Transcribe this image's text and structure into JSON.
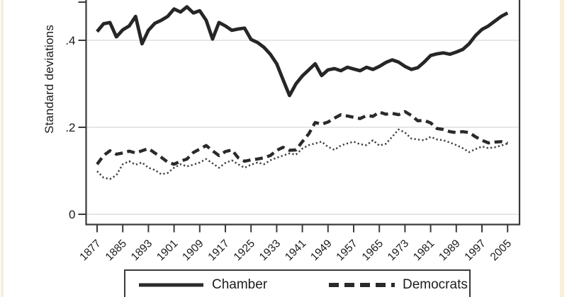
{
  "figure": {
    "background": "#ffffff",
    "edge_stripe_color": "#f7efda",
    "axis_color": "#3a3a3a",
    "grid_color": "#dddddd",
    "text_color": "#1a1a1a"
  },
  "legend": {
    "chamber_label": "Chamber",
    "democrats_label": "Democrats"
  },
  "chart_data": {
    "type": "line",
    "title": "",
    "xlabel": "",
    "ylabel": "Standard deviations",
    "x_range": {
      "start": 1877,
      "step": 2,
      "end": 2005
    },
    "xlim": [
      1877,
      2005
    ],
    "ylim_visible": [
      0,
      0.49
    ],
    "grid": "horizontal",
    "yticks": [
      {
        "value": 0,
        "label": "0"
      },
      {
        "value": 0.2,
        "label": ".2"
      },
      {
        "value": 0.4,
        "label": ".4"
      }
    ],
    "xticks": [
      "1877",
      "1885",
      "1893",
      "1901",
      "1909",
      "1917",
      "1925",
      "1933",
      "1941",
      "1949",
      "1957",
      "1965",
      "1973",
      "1981",
      "1989",
      "1997",
      "2005"
    ],
    "legend_position": "bottom",
    "legend_visible_entries": [
      "Chamber",
      "Democrats"
    ],
    "series": [
      {
        "id": "chamber",
        "name": "Chamber",
        "line_style": "solid",
        "color": "#262626",
        "stroke_width": 4.8,
        "dash": "",
        "in_visible_legend": true,
        "values": [
          0.42,
          0.438,
          0.441,
          0.408,
          0.424,
          0.433,
          0.455,
          0.392,
          0.423,
          0.439,
          0.446,
          0.455,
          0.472,
          0.465,
          0.477,
          0.463,
          0.468,
          0.446,
          0.403,
          0.441,
          0.433,
          0.423,
          0.426,
          0.428,
          0.402,
          0.395,
          0.384,
          0.368,
          0.346,
          0.309,
          0.273,
          0.3,
          0.318,
          0.332,
          0.346,
          0.319,
          0.332,
          0.335,
          0.33,
          0.338,
          0.334,
          0.33,
          0.338,
          0.333,
          0.34,
          0.349,
          0.355,
          0.35,
          0.34,
          0.333,
          0.337,
          0.35,
          0.365,
          0.369,
          0.371,
          0.368,
          0.373,
          0.379,
          0.392,
          0.411,
          0.425,
          0.433,
          0.444,
          0.455,
          0.463
        ]
      },
      {
        "id": "democrats",
        "name": "Democrats",
        "line_style": "dashed",
        "color": "#2a2a2a",
        "stroke_width": 4.4,
        "dash": "11 6.5",
        "in_visible_legend": true,
        "values": [
          0.115,
          0.135,
          0.146,
          0.138,
          0.141,
          0.145,
          0.141,
          0.146,
          0.151,
          0.141,
          0.131,
          0.12,
          0.115,
          0.122,
          0.127,
          0.142,
          0.15,
          0.158,
          0.146,
          0.135,
          0.144,
          0.148,
          0.13,
          0.122,
          0.125,
          0.127,
          0.13,
          0.135,
          0.147,
          0.154,
          0.147,
          0.148,
          0.167,
          0.185,
          0.211,
          0.207,
          0.212,
          0.221,
          0.229,
          0.226,
          0.223,
          0.22,
          0.227,
          0.225,
          0.235,
          0.23,
          0.232,
          0.229,
          0.236,
          0.227,
          0.215,
          0.216,
          0.21,
          0.197,
          0.195,
          0.19,
          0.188,
          0.19,
          0.188,
          0.178,
          0.17,
          0.164,
          0.166,
          0.167,
          0.163
        ]
      },
      {
        "id": "dotted",
        "name": "",
        "line_style": "dotted",
        "color": "#3d3d3d",
        "stroke_width": 2.5,
        "dash": "2.2 3.3",
        "in_visible_legend": false,
        "values": [
          0.099,
          0.084,
          0.081,
          0.09,
          0.115,
          0.122,
          0.114,
          0.119,
          0.107,
          0.102,
          0.092,
          0.095,
          0.107,
          0.115,
          0.11,
          0.114,
          0.119,
          0.127,
          0.117,
          0.107,
          0.118,
          0.124,
          0.115,
          0.107,
          0.114,
          0.119,
          0.115,
          0.124,
          0.13,
          0.135,
          0.14,
          0.137,
          0.151,
          0.159,
          0.163,
          0.167,
          0.155,
          0.148,
          0.158,
          0.163,
          0.167,
          0.161,
          0.159,
          0.17,
          0.158,
          0.162,
          0.178,
          0.195,
          0.188,
          0.174,
          0.172,
          0.17,
          0.178,
          0.172,
          0.17,
          0.165,
          0.159,
          0.152,
          0.143,
          0.15,
          0.156,
          0.152,
          0.154,
          0.158,
          0.163
        ]
      }
    ]
  }
}
